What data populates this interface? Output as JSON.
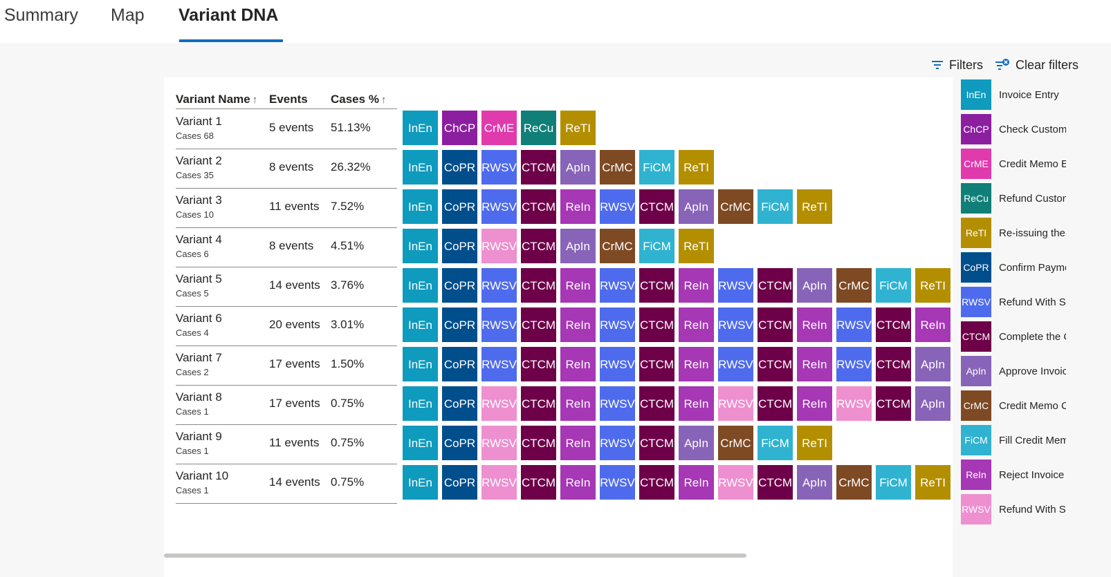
{
  "tabs": [
    {
      "label": "Summary"
    },
    {
      "label": "Map"
    },
    {
      "label": "Variant DNA"
    }
  ],
  "toolbar": {
    "filters_label": "Filters",
    "clear_filters_label": "Clear filters"
  },
  "table": {
    "headers": {
      "name": "Variant Name",
      "events": "Events",
      "cases": "Cases %"
    },
    "rows": [
      {
        "name": "Variant 1",
        "cases": "Cases 68",
        "events": "5 events",
        "pct": "51.13%",
        "dna": [
          "InEn",
          "ChCP",
          "CrME",
          "ReCu",
          "ReTI"
        ]
      },
      {
        "name": "Variant 2",
        "cases": "Cases 35",
        "events": "8 events",
        "pct": "26.32%",
        "dna": [
          "InEn",
          "CoPR",
          "RWSV",
          "CTCM",
          "ApIn",
          "CrMC",
          "FiCM",
          "ReTI"
        ]
      },
      {
        "name": "Variant 3",
        "cases": "Cases 10",
        "events": "11 events",
        "pct": "7.52%",
        "dna": [
          "InEn",
          "CoPR",
          "RWSV",
          "CTCM",
          "ReIn",
          "RWSV",
          "CTCM",
          "ApIn",
          "CrMC",
          "FiCM",
          "ReTI"
        ]
      },
      {
        "name": "Variant 4",
        "cases": "Cases 6",
        "events": "8 events",
        "pct": "4.51%",
        "dna": [
          "InEn",
          "CoPR",
          "RWSVp",
          "CTCM",
          "ApIn",
          "CrMC",
          "FiCM",
          "ReTI"
        ]
      },
      {
        "name": "Variant 5",
        "cases": "Cases 5",
        "events": "14 events",
        "pct": "3.76%",
        "dna": [
          "InEn",
          "CoPR",
          "RWSV",
          "CTCM",
          "ReIn",
          "RWSV",
          "CTCM",
          "ReIn",
          "RWSV",
          "CTCM",
          "ApIn",
          "CrMC",
          "FiCM",
          "ReTI"
        ]
      },
      {
        "name": "Variant 6",
        "cases": "Cases 4",
        "events": "20 events",
        "pct": "3.01%",
        "dna": [
          "InEn",
          "CoPR",
          "RWSV",
          "CTCM",
          "ReIn",
          "RWSV",
          "CTCM",
          "ReIn",
          "RWSV",
          "CTCM",
          "ReIn",
          "RWSV",
          "CTCM",
          "ReIn"
        ]
      },
      {
        "name": "Variant 7",
        "cases": "Cases 2",
        "events": "17 events",
        "pct": "1.50%",
        "dna": [
          "InEn",
          "CoPR",
          "RWSV",
          "CTCM",
          "ReIn",
          "RWSV",
          "CTCM",
          "ReIn",
          "RWSV",
          "CTCM",
          "ReIn",
          "RWSV",
          "CTCM",
          "ApIn"
        ]
      },
      {
        "name": "Variant 8",
        "cases": "Cases 1",
        "events": "17 events",
        "pct": "0.75%",
        "dna": [
          "InEn",
          "CoPR",
          "RWSVp",
          "CTCM",
          "ReIn",
          "RWSV",
          "CTCM",
          "ReIn",
          "RWSVp",
          "CTCM",
          "ReIn",
          "RWSVp",
          "CTCM",
          "ApIn"
        ]
      },
      {
        "name": "Variant 9",
        "cases": "Cases 1",
        "events": "11 events",
        "pct": "0.75%",
        "dna": [
          "InEn",
          "CoPR",
          "RWSVp",
          "CTCM",
          "ReIn",
          "RWSV",
          "CTCM",
          "ApIn",
          "CrMC",
          "FiCM",
          "ReTI"
        ]
      },
      {
        "name": "Variant 10",
        "cases": "Cases 1",
        "events": "14 events",
        "pct": "0.75%",
        "dna": [
          "InEn",
          "CoPR",
          "RWSVp",
          "CTCM",
          "ReIn",
          "RWSV",
          "CTCM",
          "ReIn",
          "RWSVp",
          "CTCM",
          "ApIn",
          "CrMC",
          "FiCM",
          "ReTI"
        ]
      }
    ]
  },
  "activities": {
    "InEn": {
      "abbr": "InEn",
      "color": "#0f9bbd"
    },
    "ChCP": {
      "abbr": "ChCP",
      "color": "#8b1fa0"
    },
    "CrME": {
      "abbr": "CrME",
      "color": "#e03aad"
    },
    "ReCu": {
      "abbr": "ReCu",
      "color": "#0f7f78"
    },
    "ReTI": {
      "abbr": "ReTI",
      "color": "#b38f00"
    },
    "CoPR": {
      "abbr": "CoPR",
      "color": "#004e8c"
    },
    "RWSV": {
      "abbr": "RWSV",
      "color": "#4f6bed"
    },
    "RWSVp": {
      "abbr": "RWSV",
      "color": "#ee8fcf"
    },
    "CTCM": {
      "abbr": "CTCM",
      "color": "#6d0048"
    },
    "ApIn": {
      "abbr": "ApIn",
      "color": "#8764b8"
    },
    "CrMC": {
      "abbr": "CrMC",
      "color": "#7e4a24"
    },
    "FiCM": {
      "abbr": "FiCM",
      "color": "#2fb3d0"
    },
    "ReIn": {
      "abbr": "ReIn",
      "color": "#a637b5"
    }
  },
  "legend": [
    {
      "key": "InEn",
      "label": "Invoice Entry"
    },
    {
      "key": "ChCP",
      "label": "Check Custome"
    },
    {
      "key": "CrME",
      "label": "Credit Memo E"
    },
    {
      "key": "ReCu",
      "label": "Refund Custon"
    },
    {
      "key": "ReTI",
      "label": "Re-issuing the"
    },
    {
      "key": "CoPR",
      "label": "Confirm Payme"
    },
    {
      "key": "RWSV",
      "label": "Refund With St"
    },
    {
      "key": "CTCM",
      "label": "Complete the C"
    },
    {
      "key": "ApIn",
      "label": "Approve Invoic"
    },
    {
      "key": "CrMC",
      "label": "Credit Memo C"
    },
    {
      "key": "FiCM",
      "label": "Fill Credit Mem"
    },
    {
      "key": "ReIn",
      "label": "Reject Invoice"
    },
    {
      "key": "RWSVp",
      "label": "Refund With Sp"
    }
  ]
}
